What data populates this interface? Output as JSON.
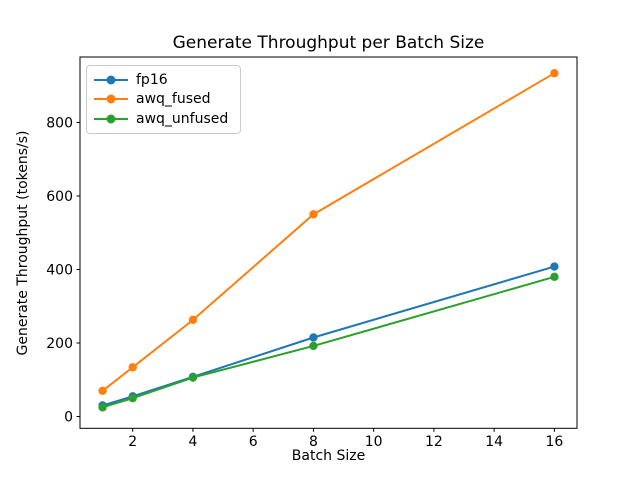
{
  "chart_data": {
    "type": "line",
    "title": "Generate Throughput per Batch Size",
    "xlabel": "Batch Size",
    "ylabel": "Generate Throughput (tokens/s)",
    "x": [
      1,
      2,
      4,
      8,
      16
    ],
    "series": [
      {
        "name": "fp16",
        "color": "#1f77b4",
        "values": [
          30,
          55,
          108,
          215,
          408
        ]
      },
      {
        "name": "awq_fused",
        "color": "#ff7f0e",
        "values": [
          70,
          134,
          263,
          550,
          934
        ]
      },
      {
        "name": "awq_unfused",
        "color": "#2ca02c",
        "values": [
          25,
          50,
          106,
          192,
          380
        ]
      }
    ],
    "xlim": [
      0.25,
      16.75
    ],
    "ylim": [
      -32,
      978
    ],
    "xticks": [
      2,
      4,
      6,
      8,
      10,
      12,
      14,
      16
    ],
    "yticks": [
      0,
      200,
      400,
      600,
      800
    ],
    "grid": false,
    "legend_position": "upper left",
    "marker": "o",
    "spine_color": "#000000"
  }
}
